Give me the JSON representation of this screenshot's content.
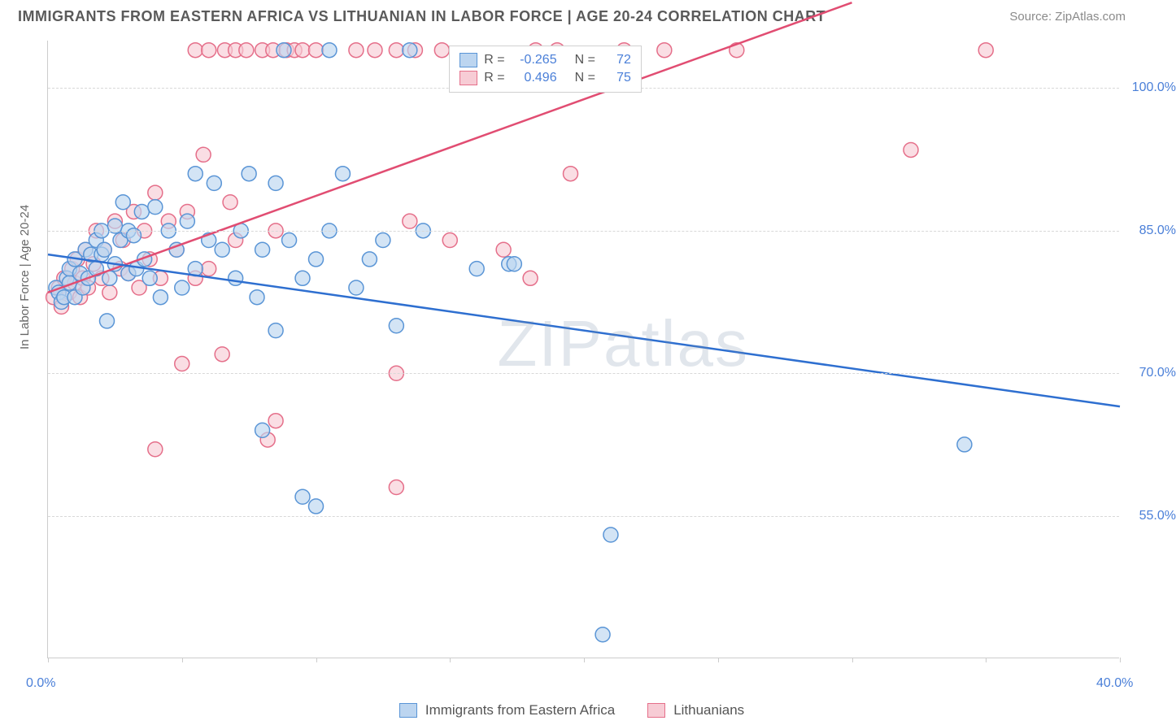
{
  "header": {
    "title": "IMMIGRANTS FROM EASTERN AFRICA VS LITHUANIAN IN LABOR FORCE | AGE 20-24 CORRELATION CHART",
    "source_label": "Source: ",
    "source_name": "ZipAtlas.com"
  },
  "chart": {
    "type": "scatter",
    "y_axis_label": "In Labor Force | Age 20-24",
    "xlim": [
      0,
      40
    ],
    "ylim": [
      40,
      105
    ],
    "x_ticks": [
      0,
      5,
      10,
      15,
      20,
      25,
      30,
      35,
      40
    ],
    "x_tick_labels": {
      "0": "0.0%",
      "40": "40.0%"
    },
    "y_ticks": [
      55,
      70,
      85,
      100
    ],
    "y_tick_labels": {
      "55": "55.0%",
      "70": "70.0%",
      "85": "85.0%",
      "100": "100.0%"
    },
    "grid_color": "#d8d8d8",
    "background_color": "#ffffff",
    "axis_color": "#cccccc",
    "tick_label_color": "#4a7fd8",
    "axis_label_color": "#666666",
    "marker_radius": 9,
    "marker_stroke_width": 1.5,
    "trend_line_width": 2.5,
    "series_a": {
      "label": "Immigrants from Eastern Africa",
      "fill_color": "#bcd5f0",
      "stroke_color": "#5a95d6",
      "line_color": "#2e6fd0",
      "R": "-0.265",
      "N": "72",
      "trend": {
        "x1": 0,
        "y1": 82.5,
        "x2": 40,
        "y2": 66.5
      },
      "points": [
        [
          0.3,
          79
        ],
        [
          0.4,
          78.5
        ],
        [
          0.5,
          77.5
        ],
        [
          0.6,
          78
        ],
        [
          0.7,
          80
        ],
        [
          0.8,
          79.5
        ],
        [
          0.8,
          81
        ],
        [
          1,
          78
        ],
        [
          1,
          82
        ],
        [
          1.2,
          80.5
        ],
        [
          1.3,
          79
        ],
        [
          1.4,
          83
        ],
        [
          1.5,
          80
        ],
        [
          1.6,
          82.5
        ],
        [
          1.8,
          84
        ],
        [
          1.8,
          81
        ],
        [
          2,
          82.5
        ],
        [
          2,
          85
        ],
        [
          2.1,
          83
        ],
        [
          2.3,
          80
        ],
        [
          2.5,
          85.5
        ],
        [
          2.5,
          81.5
        ],
        [
          2.7,
          84
        ],
        [
          2.8,
          88
        ],
        [
          3,
          80.5
        ],
        [
          3,
          85
        ],
        [
          2.2,
          75.5
        ],
        [
          3.2,
          84.5
        ],
        [
          3.3,
          81
        ],
        [
          3.5,
          87
        ],
        [
          3.6,
          82
        ],
        [
          3.8,
          80
        ],
        [
          4,
          87.5
        ],
        [
          4.2,
          78
        ],
        [
          4.5,
          85
        ],
        [
          4.8,
          83
        ],
        [
          5,
          79
        ],
        [
          5.2,
          86
        ],
        [
          5.5,
          91
        ],
        [
          5.5,
          81
        ],
        [
          6,
          84
        ],
        [
          6.2,
          90
        ],
        [
          6.5,
          83
        ],
        [
          7,
          80
        ],
        [
          7.2,
          85
        ],
        [
          7.5,
          91
        ],
        [
          7.8,
          78
        ],
        [
          8,
          64
        ],
        [
          8,
          83
        ],
        [
          8.5,
          74.5
        ],
        [
          8.5,
          90
        ],
        [
          9,
          84
        ],
        [
          9.5,
          57
        ],
        [
          9.5,
          80
        ],
        [
          10,
          82
        ],
        [
          10.5,
          85
        ],
        [
          10,
          56
        ],
        [
          11,
          91
        ],
        [
          11.5,
          79
        ],
        [
          12,
          82
        ],
        [
          12.5,
          84
        ],
        [
          13,
          75
        ],
        [
          13.5,
          104
        ],
        [
          8.8,
          104
        ],
        [
          14,
          85
        ],
        [
          16,
          81
        ],
        [
          17.2,
          81.5
        ],
        [
          17.4,
          81.5
        ],
        [
          21,
          53
        ],
        [
          20.7,
          42.5
        ],
        [
          34.2,
          62.5
        ],
        [
          10.5,
          104
        ]
      ]
    },
    "series_b": {
      "label": "Lithuanians",
      "fill_color": "#f7ccd5",
      "stroke_color": "#e56f8a",
      "line_color": "#e14d72",
      "R": "0.496",
      "N": "75",
      "trend": {
        "x1": 0,
        "y1": 78.5,
        "x2": 30,
        "y2": 109
      },
      "points": [
        [
          0.2,
          78
        ],
        [
          0.4,
          79
        ],
        [
          0.5,
          77
        ],
        [
          0.6,
          80
        ],
        [
          0.8,
          78.5
        ],
        [
          0.9,
          81
        ],
        [
          1,
          79.5
        ],
        [
          1.1,
          82
        ],
        [
          1.2,
          78
        ],
        [
          1.3,
          80
        ],
        [
          1.4,
          83
        ],
        [
          1.5,
          79
        ],
        [
          1.7,
          81.5
        ],
        [
          1.8,
          85
        ],
        [
          2,
          80
        ],
        [
          2.1,
          83
        ],
        [
          2.3,
          78.5
        ],
        [
          2.5,
          86
        ],
        [
          2.7,
          81
        ],
        [
          2.8,
          84
        ],
        [
          3,
          80.5
        ],
        [
          3.2,
          87
        ],
        [
          3.4,
          79
        ],
        [
          3.6,
          85
        ],
        [
          3.8,
          82
        ],
        [
          4,
          89
        ],
        [
          4.2,
          80
        ],
        [
          4.5,
          86
        ],
        [
          4.8,
          83
        ],
        [
          5,
          71
        ],
        [
          5.2,
          87
        ],
        [
          5.5,
          80
        ],
        [
          4,
          62
        ],
        [
          5.8,
          93
        ],
        [
          6,
          81
        ],
        [
          6.5,
          72
        ],
        [
          6.8,
          88
        ],
        [
          7,
          84
        ],
        [
          5.5,
          104
        ],
        [
          6,
          104
        ],
        [
          6.6,
          104
        ],
        [
          7,
          104
        ],
        [
          7.4,
          104
        ],
        [
          8,
          104
        ],
        [
          8.2,
          63
        ],
        [
          8.5,
          65
        ],
        [
          8.4,
          104
        ],
        [
          8.9,
          104
        ],
        [
          9.2,
          104
        ],
        [
          9.5,
          104
        ],
        [
          10,
          104
        ],
        [
          8.5,
          85
        ],
        [
          11.5,
          104
        ],
        [
          12.2,
          104
        ],
        [
          13,
          104
        ],
        [
          13.7,
          104
        ],
        [
          14.7,
          104
        ],
        [
          13,
          70
        ],
        [
          13.5,
          86
        ],
        [
          13,
          58
        ],
        [
          15,
          84
        ],
        [
          17,
          83
        ],
        [
          18.2,
          104
        ],
        [
          18,
          80
        ],
        [
          19,
          104
        ],
        [
          19.5,
          91
        ],
        [
          21.5,
          104
        ],
        [
          23,
          104
        ],
        [
          25.7,
          104
        ],
        [
          32.2,
          93.5
        ],
        [
          35,
          104
        ]
      ]
    },
    "legend_box": {
      "R_label": "R =",
      "N_label": "N ="
    },
    "watermark": "ZIPatlas"
  }
}
